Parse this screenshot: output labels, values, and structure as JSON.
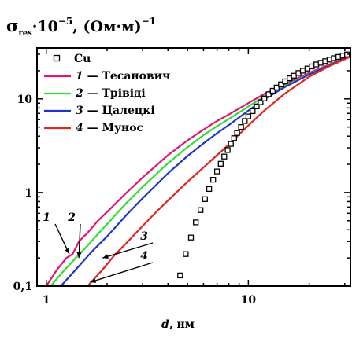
{
  "chart_data": {
    "type": "line",
    "title": "σres·10⁻⁵, (Ом·м)⁻¹",
    "title_parts": {
      "sigma": "σ",
      "sub": "res",
      "mid": "·10",
      "exp1": "−5",
      "unit": ", (Ом·м)",
      "exp2": "−1"
    },
    "xlabel": "d, нм",
    "xlabel_parts": {
      "var": "d",
      "unit": ", нм"
    },
    "ylabel": "",
    "x_scale": "log",
    "y_scale": "log",
    "xlim": [
      0.9,
      32
    ],
    "ylim": [
      0.1,
      35
    ],
    "x_ticks": [
      {
        "value": 1,
        "label": "1"
      },
      {
        "value": 10,
        "label": "10"
      }
    ],
    "y_ticks": [
      {
        "value": 0.1,
        "label": "0,1"
      },
      {
        "value": 1,
        "label": "1"
      },
      {
        "value": 10,
        "label": "10"
      }
    ],
    "grid": false,
    "legend_position": "top-left",
    "points": {
      "name": "Cu",
      "marker": "open-square",
      "x": [
        4.6,
        4.9,
        5.2,
        5.5,
        5.8,
        6.1,
        6.4,
        6.7,
        7.0,
        7.3,
        7.6,
        7.9,
        8.2,
        8.5,
        8.8,
        9.2,
        9.6,
        10.0,
        10.5,
        11.0,
        11.5,
        12.0,
        12.6,
        13.2,
        13.8,
        14.5,
        15.2,
        16.0,
        16.8,
        17.7,
        18.6,
        19.6,
        20.6,
        21.7,
        22.8,
        24.0,
        25.2,
        26.5,
        27.9,
        29.3,
        30.8
      ],
      "y": [
        0.13,
        0.22,
        0.33,
        0.48,
        0.65,
        0.85,
        1.09,
        1.37,
        1.68,
        2.03,
        2.42,
        2.84,
        3.3,
        3.8,
        4.32,
        5.0,
        5.8,
        6.5,
        7.4,
        8.3,
        9.2,
        10.1,
        11.2,
        12.2,
        13.2,
        14.3,
        15.4,
        16.6,
        17.7,
        18.9,
        20.0,
        21.1,
        22.2,
        23.3,
        24.3,
        25.3,
        26.3,
        27.2,
        28.1,
        29.0,
        29.8
      ]
    },
    "series": [
      {
        "id": "1",
        "name": "Тесанович",
        "color": "#e2166f",
        "x": [
          1.0,
          1.13,
          1.26,
          1.35,
          1.45,
          1.6,
          1.8,
          2.0,
          2.5,
          3.0,
          4.0,
          5.0,
          6.0,
          7.0,
          8.0,
          10.0,
          12.0,
          15.0,
          20.0,
          25.0,
          32.0
        ],
        "y": [
          0.1,
          0.15,
          0.2,
          0.22,
          0.3,
          0.37,
          0.5,
          0.62,
          1.0,
          1.45,
          2.5,
          3.6,
          4.7,
          5.8,
          6.8,
          9.0,
          11.3,
          14.2,
          19.0,
          23.2,
          29.0
        ]
      },
      {
        "id": "2",
        "name": "Трівіді",
        "color": "#33dd33",
        "x": [
          1.05,
          1.2,
          1.4,
          1.6,
          1.8,
          2.0,
          2.5,
          3.0,
          4.0,
          5.0,
          6.0,
          7.0,
          8.0,
          10.0,
          12.0,
          15.0,
          20.0,
          25.0,
          32.0
        ],
        "y": [
          0.1,
          0.14,
          0.2,
          0.27,
          0.36,
          0.46,
          0.78,
          1.15,
          2.05,
          3.05,
          4.1,
          5.1,
          6.1,
          8.3,
          10.6,
          13.6,
          18.4,
          22.8,
          28.6
        ]
      },
      {
        "id": "3",
        "name": "Цалецкі",
        "color": "#2233cc",
        "x": [
          1.18,
          1.4,
          1.7,
          2.0,
          2.5,
          3.0,
          4.0,
          5.0,
          6.0,
          7.0,
          8.0,
          10.0,
          12.0,
          15.0,
          20.0,
          25.0,
          32.0
        ],
        "y": [
          0.1,
          0.15,
          0.24,
          0.34,
          0.58,
          0.87,
          1.6,
          2.45,
          3.35,
          4.3,
          5.25,
          7.5,
          9.9,
          13.2,
          18.2,
          22.6,
          28.4
        ]
      },
      {
        "id": "4",
        "name": "Мунос",
        "color": "#e3241f",
        "x": [
          1.6,
          1.9,
          2.2,
          2.5,
          3.0,
          3.5,
          4.0,
          5.0,
          6.0,
          7.0,
          8.0,
          10.0,
          12.0,
          15.0,
          20.0,
          25.0,
          32.0
        ],
        "y": [
          0.1,
          0.15,
          0.22,
          0.29,
          0.44,
          0.62,
          0.82,
          1.3,
          1.85,
          2.5,
          3.25,
          5.2,
          7.5,
          11.2,
          17.2,
          22.2,
          28.2
        ]
      }
    ],
    "annotations": [
      {
        "label": "1",
        "x": 1.3,
        "y": 0.22
      },
      {
        "label": "2",
        "x": 1.45,
        "y": 0.2
      },
      {
        "label": "3",
        "x": 1.9,
        "y": 0.2
      },
      {
        "label": "4",
        "x": 1.65,
        "y": 0.11
      }
    ]
  }
}
